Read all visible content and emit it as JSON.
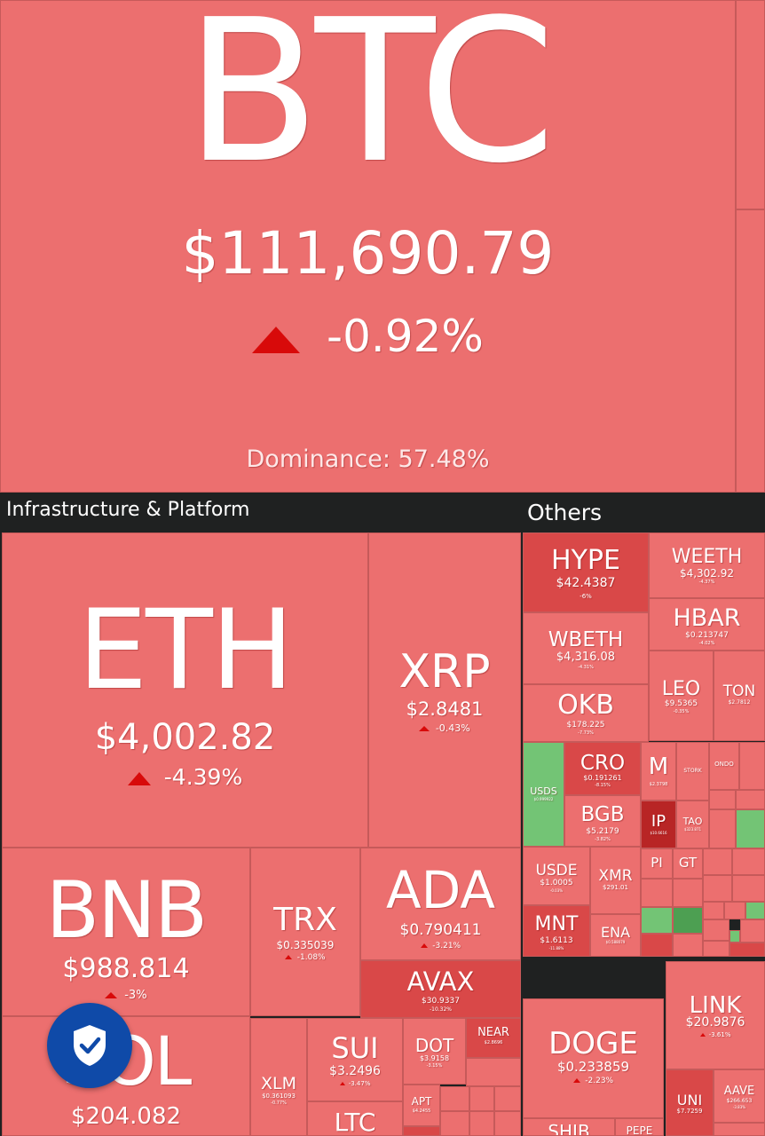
{
  "btc": {
    "symbol": "BTC",
    "price": "$111,690.79",
    "change": "-0.92%",
    "dominance": "Dominance: 57.48%"
  },
  "sections": {
    "infra": "Infrastructure & Platform",
    "others": "Others"
  },
  "infra": {
    "eth": {
      "symbol": "ETH",
      "price": "$4,002.82",
      "change": "-4.39%"
    },
    "xrp": {
      "symbol": "XRP",
      "price": "$2.8481",
      "change": "-0.43%"
    },
    "bnb": {
      "symbol": "BNB",
      "price": "$988.814",
      "change": "-3%"
    },
    "trx": {
      "symbol": "TRX",
      "price": "$0.335039",
      "change": "-1.08%"
    },
    "ada": {
      "symbol": "ADA",
      "price": "$0.790411",
      "change": "-3.21%"
    },
    "avax": {
      "symbol": "AVAX",
      "price": "$30.9337",
      "change": "-10.32%"
    },
    "sol": {
      "symbol": "SOL",
      "price": "$204.082"
    },
    "xlm": {
      "symbol": "XLM",
      "price": "$0.361093",
      "change": "-0.77%"
    },
    "sui": {
      "symbol": "SUI",
      "price": "$3.2496",
      "change": "-3.47%"
    },
    "dot": {
      "symbol": "DOT",
      "price": "$3.9158",
      "change": "-3.15%"
    },
    "near": {
      "symbol": "NEAR",
      "price": "$2.8696"
    },
    "apt": {
      "symbol": "APT",
      "price": "$4.2455"
    },
    "ltc": {
      "symbol": "LTC"
    }
  },
  "others": {
    "hype": {
      "symbol": "HYPE",
      "price": "$42.4387",
      "change": "-6%"
    },
    "weeth": {
      "symbol": "WEETH",
      "price": "$4,302.92",
      "change": "-4.37%"
    },
    "hbar": {
      "symbol": "HBAR",
      "price": "$0.213747",
      "change": "-4.02%"
    },
    "wbeth": {
      "symbol": "WBETH",
      "price": "$4,316.08",
      "change": "-4.31%"
    },
    "leo": {
      "symbol": "LEO",
      "price": "$9.5365",
      "change": "-0.35%"
    },
    "ton": {
      "symbol": "TON",
      "price": "$2.7812"
    },
    "okb": {
      "symbol": "OKB",
      "price": "$178.225",
      "change": "-7.73%"
    },
    "usds": {
      "symbol": "USDS",
      "price": "$0.999922"
    },
    "cro": {
      "symbol": "CRO",
      "price": "$0.191261",
      "change": "-8.15%"
    },
    "m": {
      "symbol": "M",
      "price": "$2.3798"
    },
    "stork": {
      "symbol": "STORK"
    },
    "ondo": {
      "symbol": "ONDO"
    },
    "bgb": {
      "symbol": "BGB",
      "price": "$5.2179",
      "change": "-3.82%"
    },
    "ip": {
      "symbol": "IP",
      "price": "$10.6616"
    },
    "tao": {
      "symbol": "TAO",
      "price": "$323.871"
    },
    "usde": {
      "symbol": "USDE",
      "price": "$1.0005",
      "change": "-0.03%"
    },
    "xmr": {
      "symbol": "XMR",
      "price": "$291.01"
    },
    "pi": {
      "symbol": "PI"
    },
    "gt": {
      "symbol": "GT"
    },
    "mnt": {
      "symbol": "MNT",
      "price": "$1.6113",
      "change": "-11.88%"
    },
    "ena": {
      "symbol": "ENA",
      "price": "$0.588079"
    },
    "link": {
      "symbol": "LINK",
      "price": "$20.9876",
      "change": "-3.61%"
    },
    "doge": {
      "symbol": "DOGE",
      "price": "$0.233859",
      "change": "-2.23%"
    },
    "uni": {
      "symbol": "UNI",
      "price": "$7.7259"
    },
    "aave": {
      "symbol": "AAVE",
      "price": "$266.653",
      "change": "-3.83%"
    },
    "shib": {
      "symbol": "SHIB"
    },
    "pepe": {
      "symbol": "PEPE"
    }
  },
  "badge": {
    "icon": "shield-check-icon"
  },
  "colors": {
    "down": "#ec6f6f",
    "down_strong": "#b82525",
    "up": "#73c475",
    "arrow": "#d80a0a",
    "header_bg": "#1f2121"
  }
}
